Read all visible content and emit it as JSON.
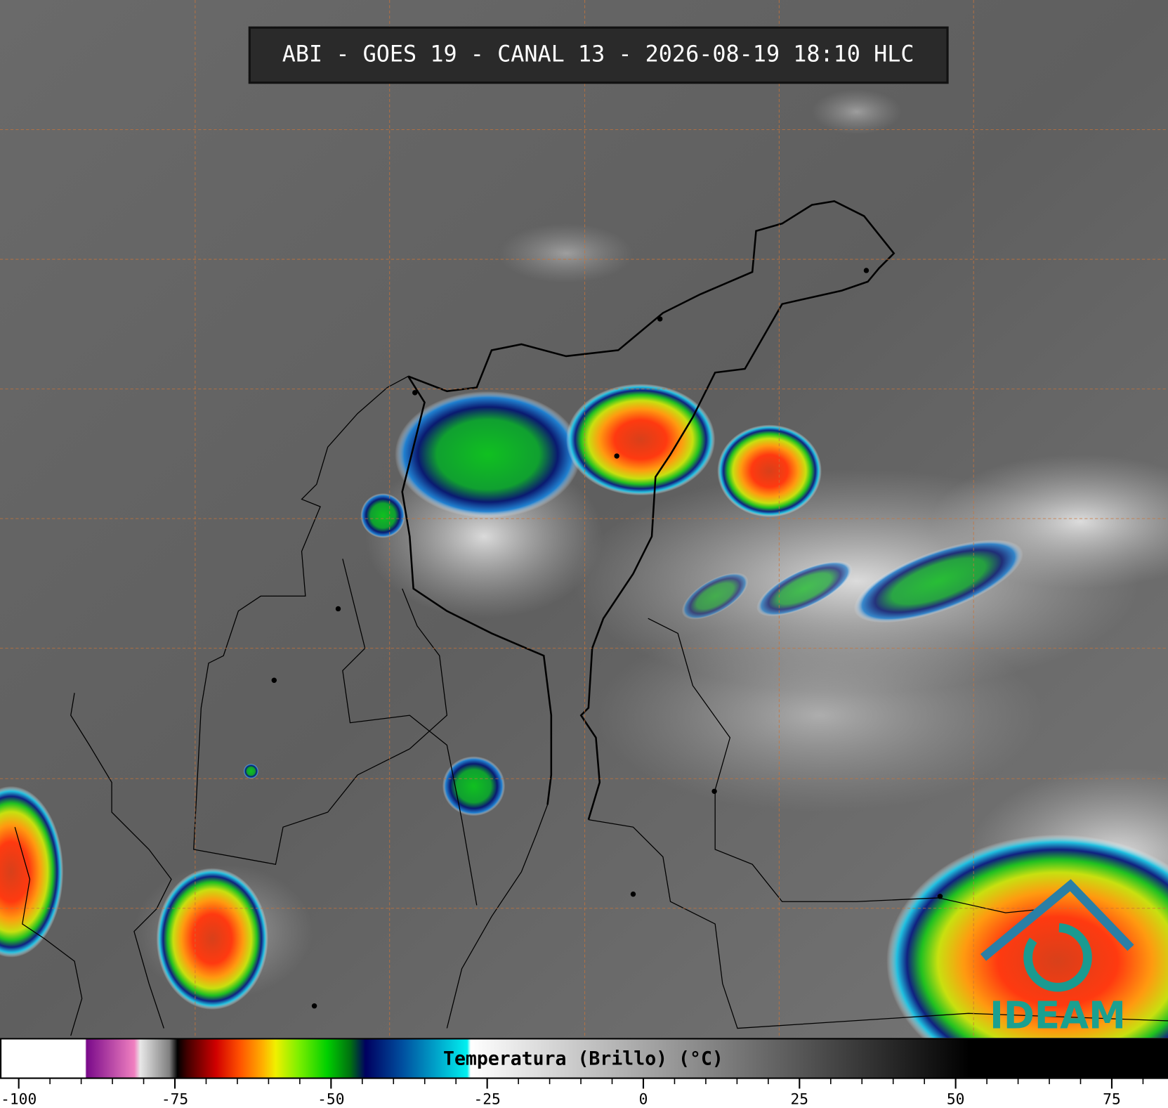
{
  "title": "ABI - GOES 19 - CANAL 13 - 2026-08-19 18:10 HLC",
  "colorbar": {
    "label": "Temperatura (Brillo) (°C)",
    "lim": [
      -103,
      84
    ],
    "ticks": [
      -100,
      -75,
      -50,
      -25,
      0,
      25,
      50,
      75
    ],
    "minor_step": 5
  },
  "logo": "IDEAM"
}
